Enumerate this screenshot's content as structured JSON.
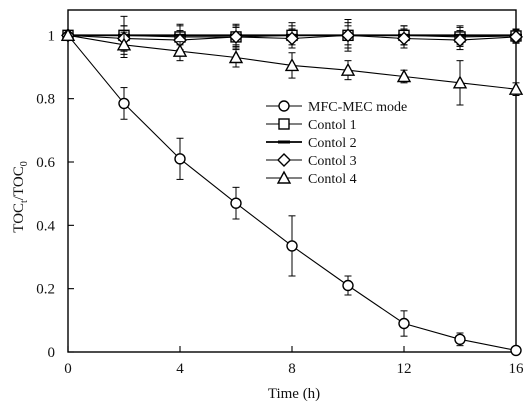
{
  "chart_data": {
    "type": "line",
    "title": "",
    "xlabel": "Time (h)",
    "ylabel_main": "TOC",
    "ylabel_sub1": "t",
    "ylabel_sep": "/TOC",
    "ylabel_sub2": "0",
    "xlim": [
      0,
      16
    ],
    "ylim": [
      0,
      1.08
    ],
    "xticks": [
      0,
      4,
      8,
      12,
      16
    ],
    "xtick_labels": [
      "0",
      "4",
      "8",
      "12",
      "16"
    ],
    "yticks": [
      0,
      0.2,
      0.4,
      0.6,
      0.8,
      1
    ],
    "ytick_labels": [
      "0",
      "0.2",
      "0.4",
      "0.6",
      "0.8",
      "1"
    ],
    "grid": false,
    "legend_position": "center-right",
    "series": [
      {
        "name": "MFC-MEC mode",
        "marker": "circle",
        "x": [
          0,
          2,
          4,
          6,
          8,
          10,
          12,
          14,
          16
        ],
        "y": [
          1.0,
          0.785,
          0.61,
          0.47,
          0.335,
          0.21,
          0.09,
          0.04,
          0.005
        ],
        "err": [
          0,
          0.05,
          0.065,
          0.05,
          0.095,
          0.03,
          0.04,
          0.02,
          0.005
        ]
      },
      {
        "name": "Contol 1",
        "marker": "square",
        "x": [
          0,
          2,
          4,
          6,
          8,
          10,
          12,
          14,
          16
        ],
        "y": [
          1.0,
          1.0,
          0.995,
          0.995,
          1.0,
          1.0,
          1.0,
          0.995,
          0.998
        ],
        "err": [
          0,
          0.06,
          0.04,
          0.03,
          0.04,
          0.05,
          0.03,
          0.03,
          0.02
        ]
      },
      {
        "name": "Contol 2",
        "marker": "dash",
        "x": [
          0,
          2,
          4,
          6,
          8,
          10,
          12,
          14,
          16
        ],
        "y": [
          1.0,
          1.0,
          1.0,
          1.0,
          1.0,
          1.0,
          1.0,
          1.0,
          1.0
        ],
        "err": [
          0,
          0.03,
          0.03,
          0.03,
          0.03,
          0.03,
          0.03,
          0.03,
          0.02
        ]
      },
      {
        "name": "Contol 3",
        "marker": "diamond",
        "x": [
          0,
          2,
          4,
          6,
          8,
          10,
          12,
          14,
          16
        ],
        "y": [
          1.0,
          0.99,
          0.985,
          0.995,
          0.99,
          1.0,
          0.99,
          0.985,
          0.995
        ],
        "err": [
          0,
          0.04,
          0.03,
          0.04,
          0.03,
          0.04,
          0.03,
          0.03,
          0.02
        ]
      },
      {
        "name": "Contol 4",
        "marker": "triangle",
        "x": [
          0,
          2,
          4,
          6,
          8,
          10,
          12,
          14,
          16
        ],
        "y": [
          1.0,
          0.97,
          0.95,
          0.93,
          0.905,
          0.89,
          0.87,
          0.85,
          0.83
        ],
        "err": [
          0,
          0.04,
          0.03,
          0.03,
          0.04,
          0.03,
          0.02,
          0.07,
          0.02
        ]
      }
    ]
  }
}
